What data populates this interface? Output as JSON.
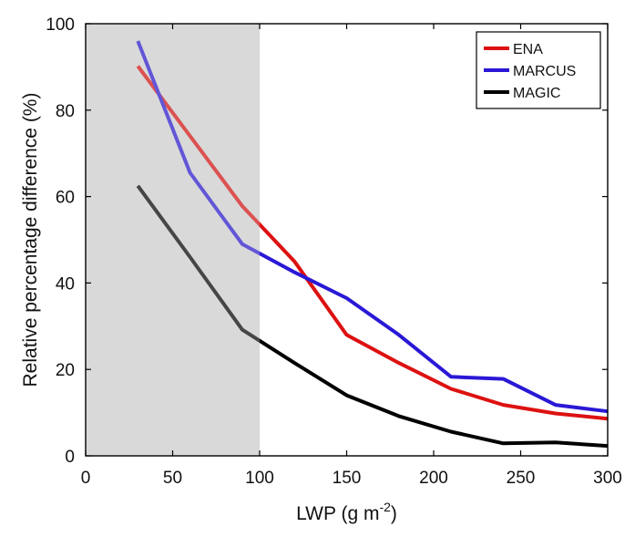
{
  "chart_data": {
    "type": "line",
    "xlabel": "LWP (g m",
    "xlabel_sup": "-2",
    "xlabel_end": ")",
    "ylabel": "Relative percentage difference (%)",
    "xlim": [
      0,
      300
    ],
    "ylim": [
      0,
      100
    ],
    "x_ticks": [
      "0",
      "50",
      "100",
      "150",
      "200",
      "250",
      "300"
    ],
    "y_ticks": [
      "0",
      "20",
      "40",
      "60",
      "80",
      "100"
    ],
    "grid": false,
    "legend_position": "top-right",
    "shaded_region": {
      "x_start": 0,
      "x_end": 100,
      "color": "#d9d9d9"
    },
    "x": [
      30,
      60,
      90,
      120,
      150,
      180,
      210,
      240,
      270,
      300
    ],
    "series": [
      {
        "name": "ENA",
        "color": "#dd1111",
        "values": [
          90.2,
          74,
          57.8,
          45,
          28,
          21.5,
          15.5,
          11.8,
          9.8,
          8.6
        ]
      },
      {
        "name": "MARCUS",
        "color": "#2a18d6",
        "values": [
          96,
          65.5,
          49,
          42.5,
          36.5,
          28,
          18.3,
          17.8,
          11.8,
          10.3
        ]
      },
      {
        "name": "MAGIC",
        "color": "#000000",
        "values": [
          62.5,
          46,
          29.2,
          21.5,
          14,
          9.2,
          5.6,
          2.9,
          3.1,
          2.3
        ]
      }
    ]
  }
}
